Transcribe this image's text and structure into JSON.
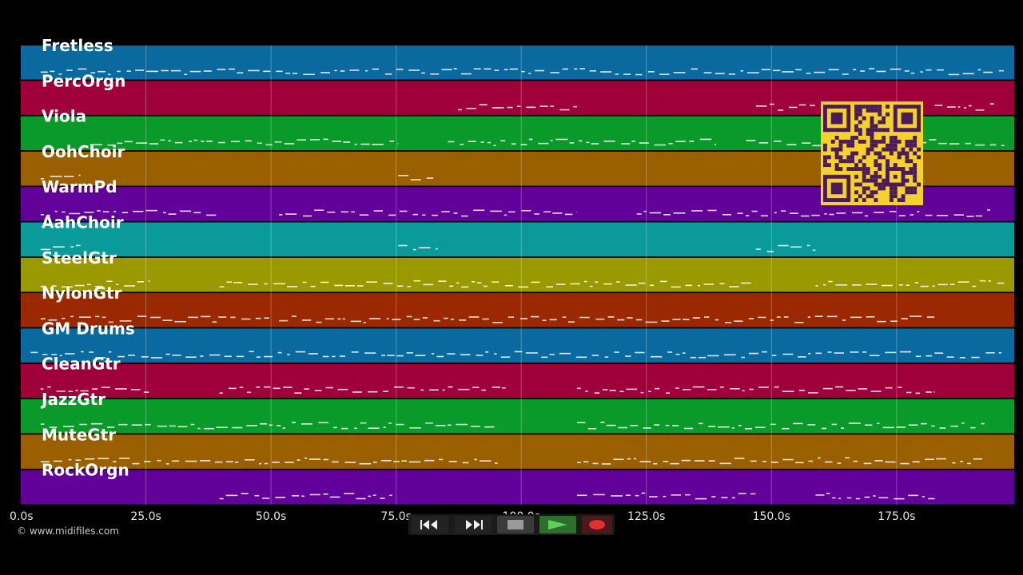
{
  "tracks": [
    {
      "name": "Fretless",
      "color": "#0a6aa0"
    },
    {
      "name": "PercOrgn",
      "color": "#a0003a"
    },
    {
      "name": "Viola",
      "color": "#0a9a2a"
    },
    {
      "name": "OohChoir",
      "color": "#9a6000"
    },
    {
      "name": "WarmPd",
      "color": "#62009a"
    },
    {
      "name": "AahChoir",
      "color": "#0a9a9a"
    },
    {
      "name": "SteelGtr",
      "color": "#9a9a00"
    },
    {
      "name": "NylonGtr",
      "color": "#9a2800"
    },
    {
      "name": "GM Drums",
      "color": "#0a6aa0"
    },
    {
      "name": "CleanGtr",
      "color": "#a0003a"
    },
    {
      "name": "JazzGtr",
      "color": "#0a9a2a"
    },
    {
      "name": "MuteGtr",
      "color": "#9a6000"
    },
    {
      "name": "RockOrgn",
      "color": "#62009a"
    }
  ],
  "time_axis": {
    "ticks": [
      "0.0s",
      "25.0s",
      "50.0s",
      "75.0s",
      "100.0s",
      "125.0s",
      "150.0s",
      "175.0s"
    ],
    "tick_values": [
      0,
      25,
      50,
      75,
      100,
      125,
      150,
      175
    ],
    "max_seconds": 198.5
  },
  "copyright": "© www.midifiles.com",
  "transport": {
    "rewind_icon": "rewind-icon",
    "fastforward_icon": "fast-forward-icon",
    "stop_icon": "stop-icon",
    "play_icon": "play-icon",
    "record_icon": "record-icon"
  },
  "qr_icon": "qr-code-icon"
}
